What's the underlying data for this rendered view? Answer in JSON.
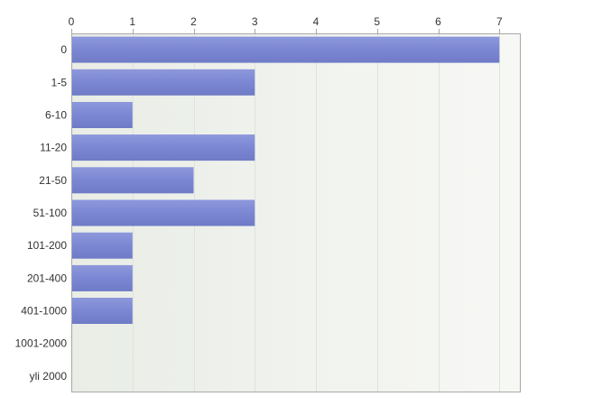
{
  "chart_data": {
    "type": "bar",
    "orientation": "horizontal",
    "categories": [
      "0",
      "1-5",
      "6-10",
      "11-20",
      "21-50",
      "51-100",
      "101-200",
      "201-400",
      "401-1000",
      "1001-2000",
      "yli 2000"
    ],
    "values": [
      7,
      3,
      1,
      3,
      2,
      3,
      1,
      1,
      1,
      0,
      0
    ],
    "xlim": [
      0,
      7.35
    ],
    "xticks": [
      "0",
      "1",
      "2",
      "3",
      "4",
      "5",
      "6",
      "7"
    ],
    "x_axis_position": "top",
    "grid": true,
    "colors": {
      "bar": "#7b87d3",
      "bar_dark": "#6f7bc6",
      "bar_light": "#8d98dc",
      "plot_bg_left": "#e9ede6",
      "plot_bg_right": "#f7f8f5",
      "grid": "#dfe3da",
      "axis": "#a8a8a8"
    }
  }
}
